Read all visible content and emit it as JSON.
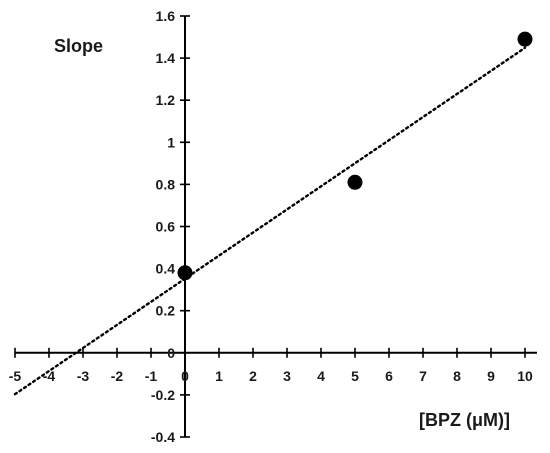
{
  "chart_data": {
    "type": "scatter",
    "ylabel": "Slope",
    "xlabel": "[BPZ (μM)]",
    "xlim": [
      -5,
      10
    ],
    "ylim": [
      -0.4,
      1.6
    ],
    "x_ticks": [
      "-5",
      "-4",
      "-3",
      "-2",
      "-1",
      "0",
      "1",
      "2",
      "3",
      "4",
      "5",
      "6",
      "7",
      "8",
      "9",
      "10"
    ],
    "y_ticks": [
      "-0.4",
      "-0.2",
      "0",
      "0.2",
      "0.4",
      "0.6",
      "0.8",
      "1",
      "1.2",
      "1.4",
      "1.6"
    ],
    "grid": false,
    "series": [
      {
        "points": [
          {
            "x": 0,
            "y": 0.38
          },
          {
            "x": 5,
            "y": 0.81
          },
          {
            "x": 10,
            "y": 1.49
          }
        ],
        "color": "#000000"
      }
    ],
    "trendline": {
      "style": "dotted",
      "slope": 0.1097,
      "intercept": 0.352,
      "x_range": [
        -5,
        10
      ]
    }
  }
}
